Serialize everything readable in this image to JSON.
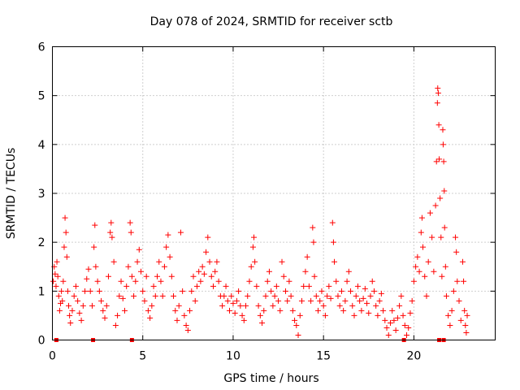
{
  "chart_data": {
    "type": "scatter",
    "title": "Day 078 of 2024, SRMTID for receiver sctb",
    "xlabel": "GPS time / hours",
    "ylabel": "SRMTID / TECUs",
    "xlim": [
      0,
      24.5
    ],
    "ylim": [
      0,
      6
    ],
    "xticks": [
      0,
      5,
      10,
      15,
      20
    ],
    "yticks": [
      0,
      1,
      2,
      3,
      4,
      5,
      6
    ],
    "xtick_labels": [
      "0",
      "5",
      "10",
      "15",
      "20"
    ],
    "ytick_labels": [
      "0",
      "1",
      "2",
      "3",
      "4",
      "5",
      "6"
    ],
    "grid": true,
    "marker": "plus",
    "color": "#ff0000",
    "series": [
      {
        "name": "SRMTID",
        "points": [
          [
            0.05,
            1.2
          ],
          [
            0.1,
            1.5
          ],
          [
            0.15,
            1.35
          ],
          [
            0.2,
            1.1
          ],
          [
            0.25,
            1.6
          ],
          [
            0.3,
            1.3
          ],
          [
            0.35,
            0.9
          ],
          [
            0.4,
            0.6
          ],
          [
            0.45,
            0.75
          ],
          [
            0.5,
            1.0
          ],
          [
            0.55,
            0.8
          ],
          [
            0.6,
            1.2
          ],
          [
            0.65,
            1.9
          ],
          [
            0.7,
            2.5
          ],
          [
            0.75,
            2.2
          ],
          [
            0.8,
            1.7
          ],
          [
            0.85,
            1.0
          ],
          [
            0.9,
            0.7
          ],
          [
            0.95,
            0.5
          ],
          [
            1.0,
            0.35
          ],
          [
            1.1,
            0.6
          ],
          [
            1.2,
            0.9
          ],
          [
            1.3,
            1.1
          ],
          [
            1.4,
            0.8
          ],
          [
            1.5,
            0.55
          ],
          [
            1.6,
            0.4
          ],
          [
            1.7,
            0.7
          ],
          [
            1.8,
            1.0
          ],
          [
            1.9,
            1.25
          ],
          [
            2.0,
            1.45
          ],
          [
            2.1,
            1.0
          ],
          [
            2.2,
            0.7
          ],
          [
            2.3,
            1.9
          ],
          [
            2.35,
            2.35
          ],
          [
            2.4,
            1.5
          ],
          [
            2.5,
            1.2
          ],
          [
            2.6,
            1.0
          ],
          [
            2.7,
            0.8
          ],
          [
            2.8,
            0.6
          ],
          [
            2.9,
            0.45
          ],
          [
            3.0,
            0.7
          ],
          [
            3.1,
            1.3
          ],
          [
            3.2,
            2.2
          ],
          [
            3.25,
            2.4
          ],
          [
            3.3,
            2.1
          ],
          [
            3.4,
            1.6
          ],
          [
            3.5,
            0.3
          ],
          [
            3.6,
            0.5
          ],
          [
            3.7,
            0.9
          ],
          [
            3.8,
            1.2
          ],
          [
            3.9,
            0.85
          ],
          [
            4.0,
            0.6
          ],
          [
            4.1,
            1.1
          ],
          [
            4.2,
            1.5
          ],
          [
            4.3,
            2.4
          ],
          [
            4.35,
            2.2
          ],
          [
            4.4,
            1.3
          ],
          [
            4.5,
            0.9
          ],
          [
            4.6,
            1.2
          ],
          [
            4.7,
            1.6
          ],
          [
            4.8,
            1.85
          ],
          [
            4.9,
            1.4
          ],
          [
            5.0,
            1.0
          ],
          [
            5.1,
            0.8
          ],
          [
            5.2,
            1.3
          ],
          [
            5.3,
            0.6
          ],
          [
            5.4,
            0.45
          ],
          [
            5.5,
            0.7
          ],
          [
            5.6,
            1.1
          ],
          [
            5.7,
            0.9
          ],
          [
            5.8,
            1.3
          ],
          [
            5.9,
            1.6
          ],
          [
            6.0,
            1.2
          ],
          [
            6.1,
            0.9
          ],
          [
            6.2,
            1.5
          ],
          [
            6.3,
            1.9
          ],
          [
            6.4,
            2.15
          ],
          [
            6.5,
            1.7
          ],
          [
            6.6,
            1.3
          ],
          [
            6.7,
            0.9
          ],
          [
            6.8,
            0.6
          ],
          [
            6.9,
            0.4
          ],
          [
            7.0,
            0.7
          ],
          [
            7.1,
            2.2
          ],
          [
            7.2,
            1.0
          ],
          [
            7.3,
            0.5
          ],
          [
            7.4,
            0.3
          ],
          [
            7.5,
            0.2
          ],
          [
            7.6,
            0.6
          ],
          [
            7.7,
            1.0
          ],
          [
            7.8,
            1.3
          ],
          [
            7.9,
            0.8
          ],
          [
            8.0,
            1.1
          ],
          [
            8.1,
            1.4
          ],
          [
            8.2,
            1.2
          ],
          [
            8.3,
            1.5
          ],
          [
            8.4,
            1.35
          ],
          [
            8.5,
            1.8
          ],
          [
            8.6,
            2.1
          ],
          [
            8.7,
            1.6
          ],
          [
            8.8,
            1.3
          ],
          [
            8.9,
            1.1
          ],
          [
            9.0,
            1.4
          ],
          [
            9.1,
            1.6
          ],
          [
            9.2,
            1.2
          ],
          [
            9.3,
            0.9
          ],
          [
            9.4,
            0.7
          ],
          [
            9.5,
            0.9
          ],
          [
            9.6,
            1.1
          ],
          [
            9.7,
            0.8
          ],
          [
            9.8,
            0.6
          ],
          [
            9.9,
            0.9
          ],
          [
            10.0,
            0.75
          ],
          [
            10.1,
            0.55
          ],
          [
            10.2,
            0.8
          ],
          [
            10.3,
            1.0
          ],
          [
            10.4,
            0.7
          ],
          [
            10.5,
            0.5
          ],
          [
            10.6,
            0.4
          ],
          [
            10.7,
            0.7
          ],
          [
            10.8,
            0.9
          ],
          [
            10.9,
            1.2
          ],
          [
            11.0,
            1.5
          ],
          [
            11.1,
            1.9
          ],
          [
            11.15,
            2.1
          ],
          [
            11.2,
            1.6
          ],
          [
            11.3,
            1.1
          ],
          [
            11.4,
            0.7
          ],
          [
            11.5,
            0.5
          ],
          [
            11.6,
            0.35
          ],
          [
            11.7,
            0.6
          ],
          [
            11.8,
            0.9
          ],
          [
            11.9,
            1.2
          ],
          [
            12.0,
            1.4
          ],
          [
            12.1,
            1.0
          ],
          [
            12.2,
            0.7
          ],
          [
            12.3,
            0.9
          ],
          [
            12.4,
            1.1
          ],
          [
            12.5,
            0.8
          ],
          [
            12.6,
            0.6
          ],
          [
            12.7,
            1.6
          ],
          [
            12.8,
            1.3
          ],
          [
            12.9,
            1.0
          ],
          [
            13.0,
            0.8
          ],
          [
            13.1,
            1.2
          ],
          [
            13.2,
            0.9
          ],
          [
            13.3,
            0.6
          ],
          [
            13.4,
            0.4
          ],
          [
            13.5,
            0.3
          ],
          [
            13.6,
            0.1
          ],
          [
            13.7,
            0.5
          ],
          [
            13.8,
            0.8
          ],
          [
            13.9,
            1.1
          ],
          [
            14.0,
            1.4
          ],
          [
            14.1,
            1.7
          ],
          [
            14.2,
            1.1
          ],
          [
            14.3,
            0.8
          ],
          [
            14.4,
            2.3
          ],
          [
            14.45,
            2.0
          ],
          [
            14.5,
            1.3
          ],
          [
            14.6,
            0.9
          ],
          [
            14.7,
            0.6
          ],
          [
            14.8,
            0.8
          ],
          [
            14.9,
            1.0
          ],
          [
            15.0,
            0.7
          ],
          [
            15.1,
            0.5
          ],
          [
            15.2,
            0.9
          ],
          [
            15.3,
            1.1
          ],
          [
            15.4,
            0.85
          ],
          [
            15.5,
            2.4
          ],
          [
            15.55,
            2.0
          ],
          [
            15.6,
            1.6
          ],
          [
            15.7,
            1.2
          ],
          [
            15.8,
            0.9
          ],
          [
            15.9,
            0.7
          ],
          [
            16.0,
            1.0
          ],
          [
            16.1,
            0.6
          ],
          [
            16.2,
            0.8
          ],
          [
            16.3,
            1.2
          ],
          [
            16.4,
            1.4
          ],
          [
            16.5,
            1.0
          ],
          [
            16.6,
            0.7
          ],
          [
            16.7,
            0.5
          ],
          [
            16.8,
            0.9
          ],
          [
            16.9,
            1.1
          ],
          [
            17.0,
            0.8
          ],
          [
            17.1,
            0.6
          ],
          [
            17.2,
            0.85
          ],
          [
            17.3,
            1.05
          ],
          [
            17.4,
            0.75
          ],
          [
            17.5,
            0.55
          ],
          [
            17.6,
            0.9
          ],
          [
            17.7,
            1.2
          ],
          [
            17.8,
            1.0
          ],
          [
            17.9,
            0.7
          ],
          [
            18.0,
            0.5
          ],
          [
            18.1,
            0.8
          ],
          [
            18.2,
            0.95
          ],
          [
            18.3,
            0.6
          ],
          [
            18.4,
            0.4
          ],
          [
            18.5,
            0.25
          ],
          [
            18.6,
            0.1
          ],
          [
            18.7,
            0.35
          ],
          [
            18.8,
            0.6
          ],
          [
            18.9,
            0.4
          ],
          [
            19.0,
            0.2
          ],
          [
            19.1,
            0.45
          ],
          [
            19.2,
            0.7
          ],
          [
            19.3,
            0.9
          ],
          [
            19.4,
            0.5
          ],
          [
            19.5,
            0.3
          ],
          [
            19.6,
            0.1
          ],
          [
            19.7,
            0.25
          ],
          [
            19.8,
            0.55
          ],
          [
            19.9,
            0.8
          ],
          [
            20.0,
            1.2
          ],
          [
            20.1,
            1.5
          ],
          [
            20.2,
            1.7
          ],
          [
            20.3,
            1.4
          ],
          [
            20.4,
            2.2
          ],
          [
            20.45,
            2.5
          ],
          [
            20.5,
            1.9
          ],
          [
            20.6,
            1.3
          ],
          [
            20.7,
            0.9
          ],
          [
            20.8,
            1.6
          ],
          [
            20.9,
            2.6
          ],
          [
            21.0,
            2.1
          ],
          [
            21.1,
            1.4
          ],
          [
            21.2,
            2.75
          ],
          [
            21.25,
            3.65
          ],
          [
            21.3,
            4.85
          ],
          [
            21.32,
            5.15
          ],
          [
            21.35,
            5.05
          ],
          [
            21.38,
            4.4
          ],
          [
            21.4,
            3.7
          ],
          [
            21.45,
            2.9
          ],
          [
            21.5,
            2.1
          ],
          [
            21.55,
            1.3
          ],
          [
            21.6,
            4.3
          ],
          [
            21.62,
            4.0
          ],
          [
            21.65,
            3.65
          ],
          [
            21.68,
            3.05
          ],
          [
            21.7,
            2.3
          ],
          [
            21.75,
            1.5
          ],
          [
            21.8,
            0.9
          ],
          [
            21.9,
            0.5
          ],
          [
            22.0,
            0.3
          ],
          [
            22.1,
            0.6
          ],
          [
            22.2,
            1.0
          ],
          [
            22.3,
            2.1
          ],
          [
            22.35,
            1.8
          ],
          [
            22.4,
            1.2
          ],
          [
            22.5,
            0.8
          ],
          [
            22.6,
            0.4
          ],
          [
            22.7,
            1.6
          ],
          [
            22.75,
            1.2
          ],
          [
            22.8,
            0.6
          ],
          [
            22.85,
            0.3
          ],
          [
            22.9,
            0.15
          ],
          [
            22.95,
            0.5
          ]
        ],
        "zero_markers": [
          0.22,
          2.25,
          4.4,
          19.45,
          21.4,
          21.65
        ]
      }
    ]
  }
}
